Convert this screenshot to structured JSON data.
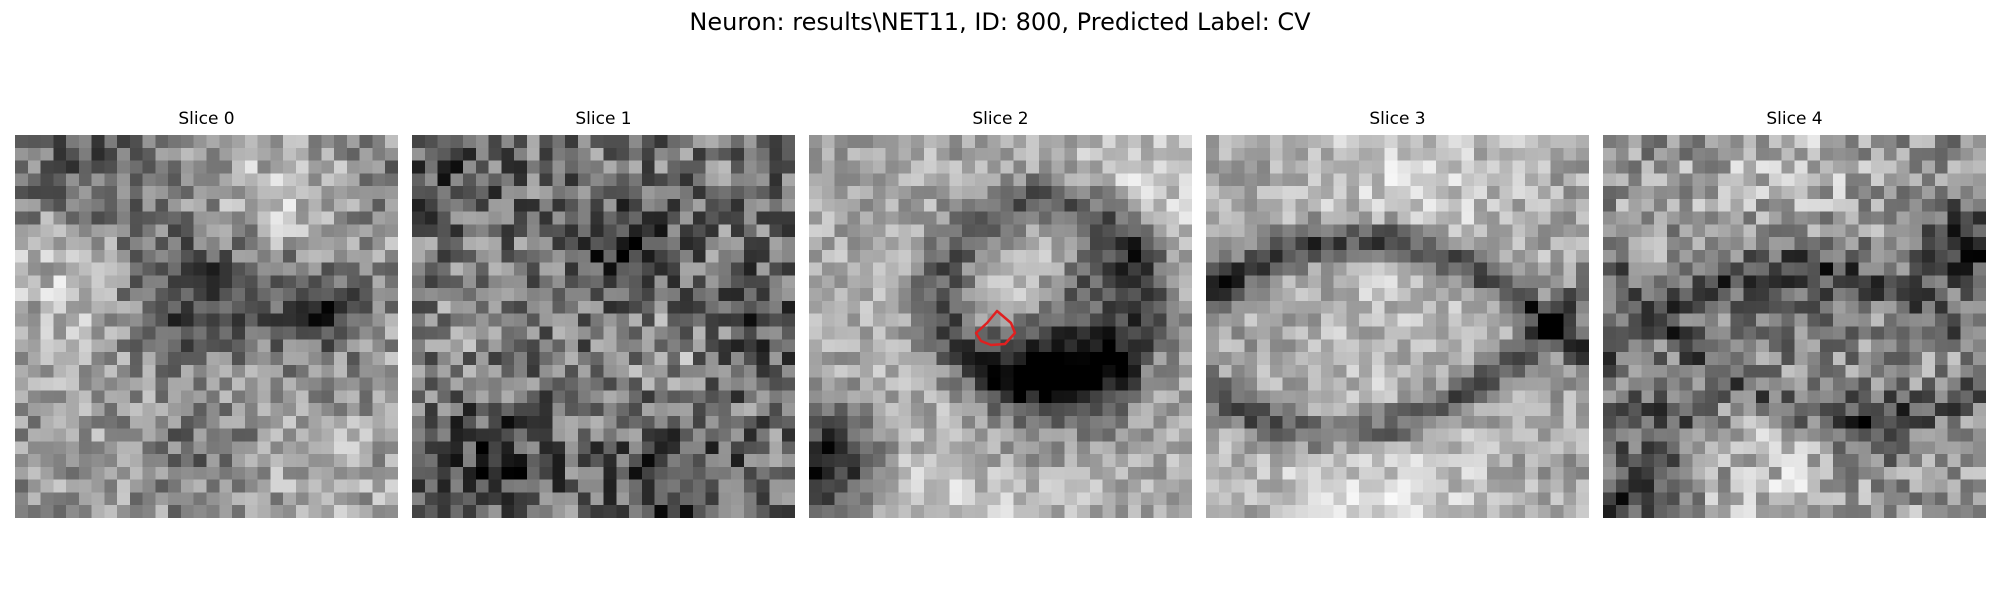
{
  "figure": {
    "title": "Neuron: results\\NET11, ID: 800, Predicted Label: CV"
  },
  "panels": [
    {
      "title": "Slice 0"
    },
    {
      "title": "Slice 1"
    },
    {
      "title": "Slice 2"
    },
    {
      "title": "Slice 3"
    },
    {
      "title": "Slice 4"
    }
  ],
  "colormap": "gray",
  "overlay_color": "#e02020"
}
